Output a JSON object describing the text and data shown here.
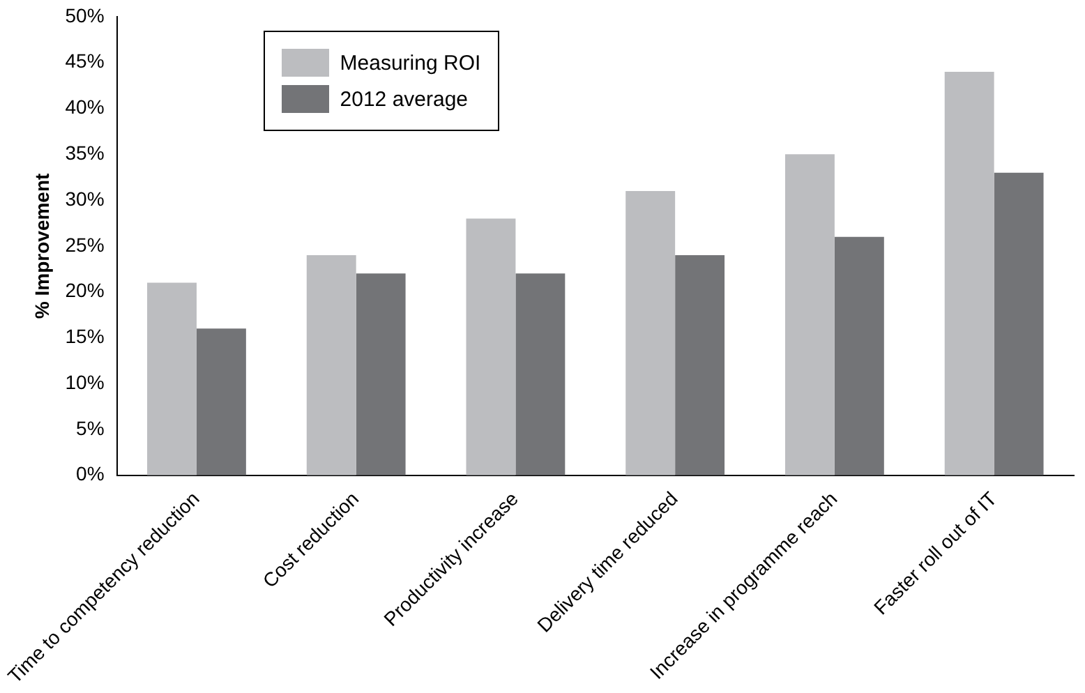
{
  "chart_data": {
    "type": "bar",
    "ylabel": "% Improvement",
    "categories": [
      "Time to competency reduction",
      "Cost reduction",
      "Productivity increase",
      "Delivery time reduced",
      "Increase in programme reach",
      "Faster roll out of IT"
    ],
    "series": [
      {
        "name": "Measuring ROI",
        "color": "#bcbdc0",
        "values": [
          21,
          24,
          28,
          31,
          35,
          44
        ]
      },
      {
        "name": "2012 average",
        "color": "#737477",
        "values": [
          16,
          22,
          22,
          24,
          26,
          33
        ]
      }
    ],
    "ylim": [
      0,
      50
    ],
    "yticks": [
      {
        "value": 0,
        "label": "0%"
      },
      {
        "value": 5,
        "label": "5%"
      },
      {
        "value": 10,
        "label": "10%"
      },
      {
        "value": 15,
        "label": "15%"
      },
      {
        "value": 20,
        "label": "20%"
      },
      {
        "value": 25,
        "label": "25%"
      },
      {
        "value": 30,
        "label": "30%"
      },
      {
        "value": 35,
        "label": "35%"
      },
      {
        "value": 40,
        "label": "40%"
      },
      {
        "value": 45,
        "label": "45%"
      },
      {
        "value": 50,
        "label": "50%"
      }
    ],
    "grid": false,
    "legend": "top left"
  }
}
